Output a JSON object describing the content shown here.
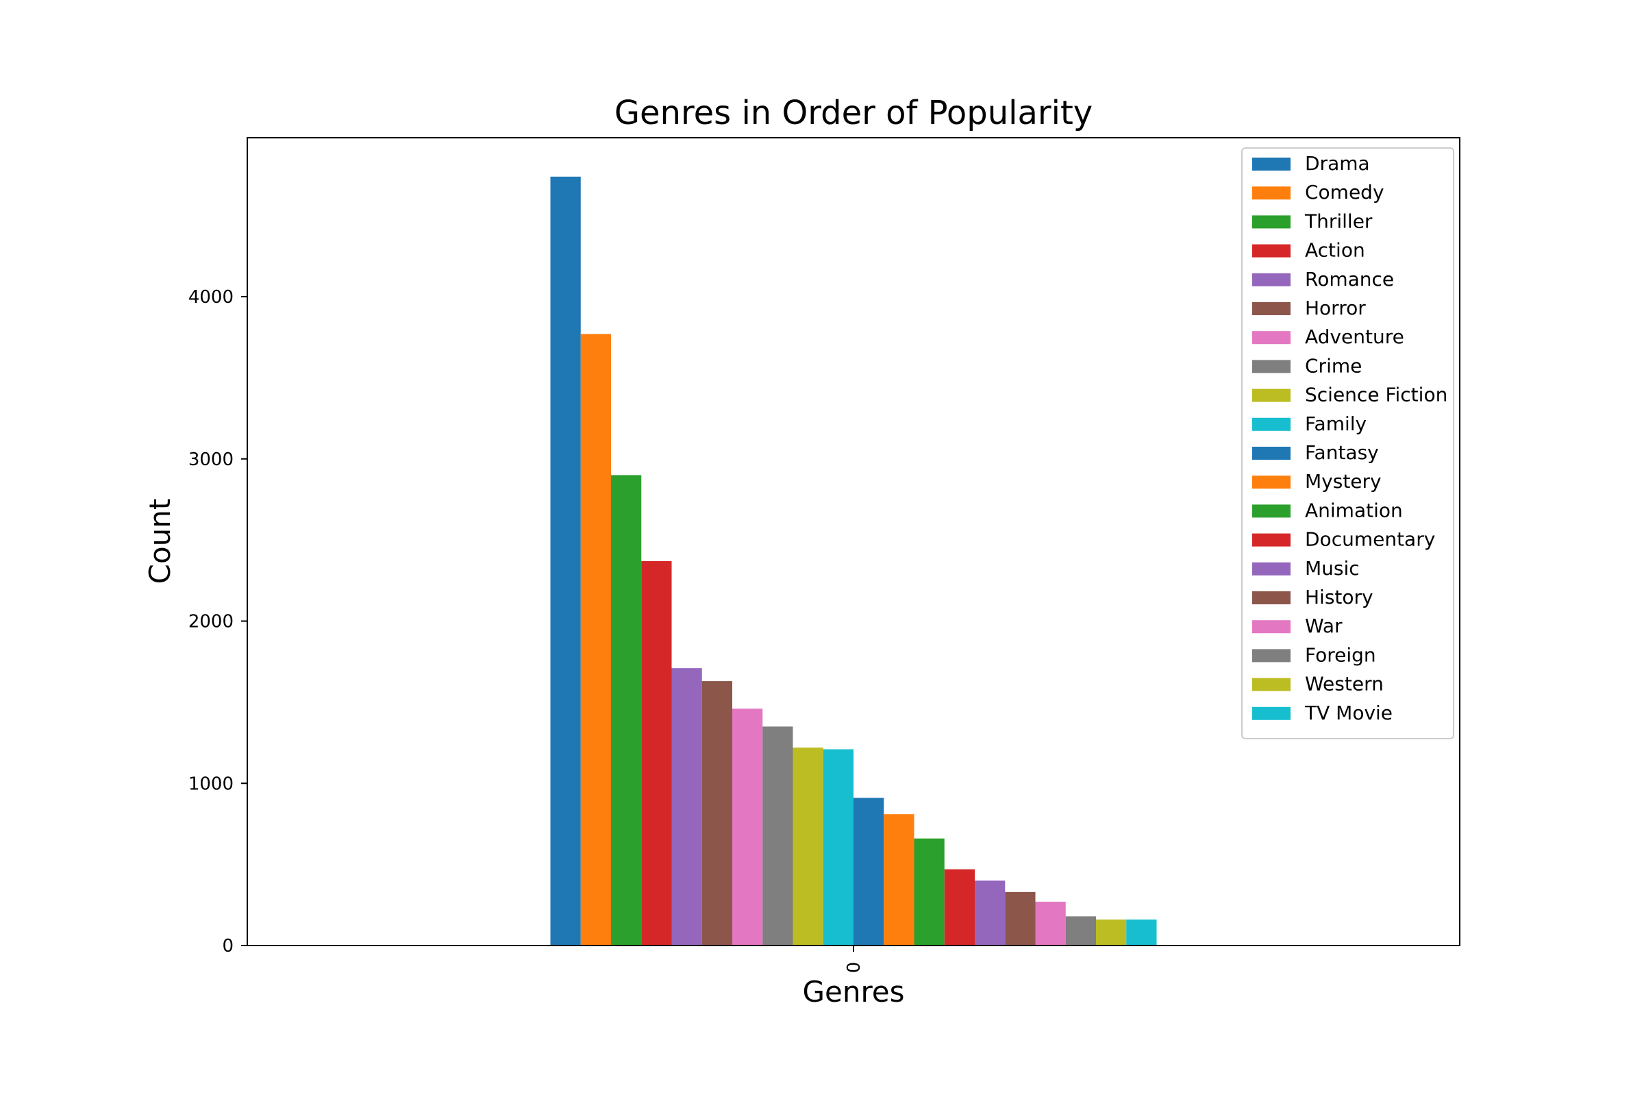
{
  "chart_data": {
    "type": "bar",
    "title": "Genres in Order of Popularity",
    "xlabel": "Genres",
    "ylabel": "Count",
    "categories": [
      "0"
    ],
    "ylim": [
      0,
      4980
    ],
    "yticks": [
      0,
      1000,
      2000,
      3000,
      4000
    ],
    "grid": false,
    "legend_position": "top-right",
    "series": [
      {
        "name": "Drama",
        "values": [
          4740
        ],
        "color": "#1f77b4"
      },
      {
        "name": "Comedy",
        "values": [
          3770
        ],
        "color": "#ff7f0e"
      },
      {
        "name": "Thriller",
        "values": [
          2900
        ],
        "color": "#2ca02c"
      },
      {
        "name": "Action",
        "values": [
          2370
        ],
        "color": "#d62728"
      },
      {
        "name": "Romance",
        "values": [
          1710
        ],
        "color": "#9467bd"
      },
      {
        "name": "Horror",
        "values": [
          1630
        ],
        "color": "#8c564b"
      },
      {
        "name": "Adventure",
        "values": [
          1460
        ],
        "color": "#e377c2"
      },
      {
        "name": "Crime",
        "values": [
          1350
        ],
        "color": "#7f7f7f"
      },
      {
        "name": "Science Fiction",
        "values": [
          1220
        ],
        "color": "#bcbd22"
      },
      {
        "name": "Family",
        "values": [
          1210
        ],
        "color": "#17becf"
      },
      {
        "name": "Fantasy",
        "values": [
          910
        ],
        "color": "#1f77b4"
      },
      {
        "name": "Mystery",
        "values": [
          810
        ],
        "color": "#ff7f0e"
      },
      {
        "name": "Animation",
        "values": [
          660
        ],
        "color": "#2ca02c"
      },
      {
        "name": "Documentary",
        "values": [
          470
        ],
        "color": "#d62728"
      },
      {
        "name": "Music",
        "values": [
          400
        ],
        "color": "#9467bd"
      },
      {
        "name": "History",
        "values": [
          330
        ],
        "color": "#8c564b"
      },
      {
        "name": "War",
        "values": [
          270
        ],
        "color": "#e377c2"
      },
      {
        "name": "Foreign",
        "values": [
          180
        ],
        "color": "#7f7f7f"
      },
      {
        "name": "Western",
        "values": [
          160
        ],
        "color": "#bcbd22"
      },
      {
        "name": "TV Movie",
        "values": [
          160
        ],
        "color": "#17becf"
      }
    ]
  }
}
